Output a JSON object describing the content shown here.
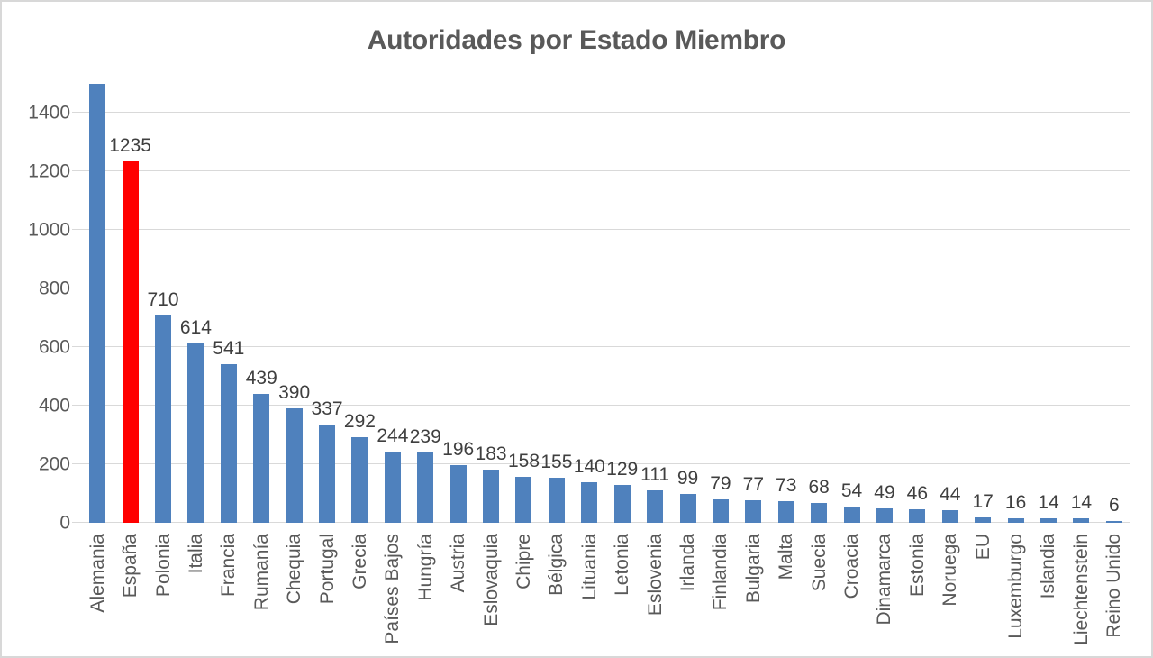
{
  "colors": {
    "bar_blue": "#4F81BD",
    "bar_highlight_red": "#FF0000",
    "gridline": "#D9D9D9",
    "axis_text": "#595959",
    "data_label_text": "#3F3F3F",
    "title_text": "#595959",
    "frame_border": "#D8D8D8",
    "background": "#FFFFFF"
  },
  "chart_data": {
    "type": "bar",
    "title": "Autoridades por Estado Miembro",
    "xlabel": "",
    "ylabel": "",
    "ylim": [
      0,
      1500
    ],
    "yticks": [
      0,
      200,
      400,
      600,
      800,
      1000,
      1200,
      1400
    ],
    "grid": true,
    "legend": false,
    "highlight_index": 1,
    "categories": [
      "Alemania",
      "España",
      "Polonia",
      "Italia",
      "Francia",
      "Rumanía",
      "Chequia",
      "Portugal",
      "Grecia",
      "Países Bajos",
      "Hungría",
      "Austria",
      "Eslovaquia",
      "Chipre",
      "Bélgica",
      "Lituania",
      "Letonia",
      "Eslovenia",
      "Irlanda",
      "Finlandia",
      "Bulgaria",
      "Malta",
      "Suecia",
      "Croacia",
      "Dinamarca",
      "Estonia",
      "Noruega",
      "EU",
      "Luxemburgo",
      "Islandia",
      "Liechtenstein",
      "Reino Unido"
    ],
    "values": [
      1500,
      1235,
      710,
      614,
      541,
      439,
      390,
      337,
      292,
      244,
      239,
      196,
      183,
      158,
      155,
      140,
      129,
      111,
      99,
      79,
      77,
      73,
      68,
      54,
      49,
      46,
      44,
      17,
      16,
      14,
      14,
      6
    ],
    "data_labels": [
      "",
      "1235",
      "710",
      "614",
      "541",
      "439",
      "390",
      "337",
      "292",
      "244",
      "239",
      "196",
      "183",
      "158",
      "155",
      "140",
      "129",
      "111",
      "99",
      "79",
      "77",
      "73",
      "68",
      "54",
      "49",
      "46",
      "44",
      "17",
      "16",
      "14",
      "14",
      "6"
    ]
  }
}
